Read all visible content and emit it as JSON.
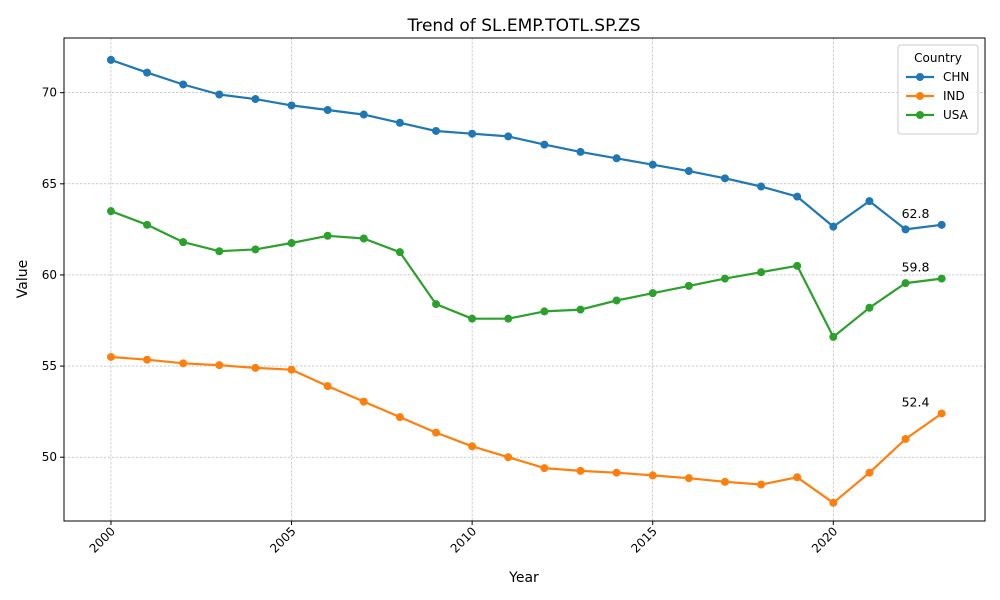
{
  "chart_data": {
    "type": "line",
    "title": "Trend of SL.EMP.TOTL.SP.ZS",
    "xlabel": "Year",
    "ylabel": "Value",
    "xlim": [
      1998.7,
      2024.2
    ],
    "ylim": [
      46.5,
      73.0
    ],
    "xticks": [
      2000,
      2005,
      2010,
      2015,
      2020
    ],
    "yticks": [
      50,
      55,
      60,
      65,
      70
    ],
    "grid": true,
    "legend": {
      "title": "Country",
      "position": "top-right"
    },
    "x": [
      2000,
      2001,
      2002,
      2003,
      2004,
      2005,
      2006,
      2007,
      2008,
      2009,
      2010,
      2011,
      2012,
      2013,
      2014,
      2015,
      2016,
      2017,
      2018,
      2019,
      2020,
      2021,
      2022,
      2023
    ],
    "series": [
      {
        "name": "CHN",
        "color": "#1f77b4",
        "values": [
          71.8,
          71.1,
          70.45,
          69.9,
          69.65,
          69.3,
          69.05,
          68.8,
          68.35,
          67.9,
          67.75,
          67.6,
          67.15,
          66.75,
          66.4,
          66.05,
          65.7,
          65.3,
          64.85,
          64.3,
          62.65,
          64.05,
          62.5,
          62.75
        ],
        "end_label": "62.8"
      },
      {
        "name": "IND",
        "color": "#ff7f0e",
        "values": [
          55.5,
          55.35,
          55.15,
          55.05,
          54.9,
          54.8,
          53.9,
          53.05,
          52.2,
          51.35,
          50.6,
          50.0,
          49.4,
          49.25,
          49.15,
          49.0,
          48.85,
          48.65,
          48.5,
          48.9,
          47.5,
          49.15,
          51.0,
          52.4
        ],
        "end_label": "52.4"
      },
      {
        "name": "USA",
        "color": "#2ca02c",
        "values": [
          63.5,
          62.75,
          61.8,
          61.3,
          61.4,
          61.75,
          62.15,
          62.0,
          61.25,
          58.4,
          57.6,
          57.6,
          58.0,
          58.1,
          58.6,
          59.0,
          59.4,
          59.8,
          60.15,
          60.5,
          56.6,
          58.2,
          59.55,
          59.8
        ],
        "end_label": "59.8"
      }
    ]
  }
}
